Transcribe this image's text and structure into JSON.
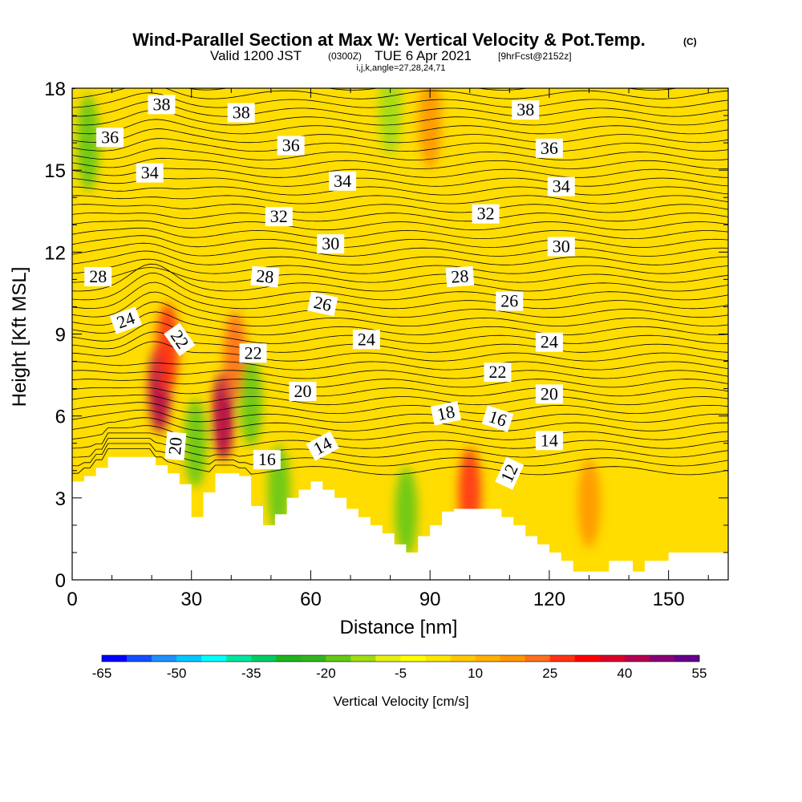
{
  "chart_data": {
    "type": "heatmap",
    "title": "Wind-Parallel Section at Max W: Vertical Velocity & Pot.Temp.",
    "title_mark": "(C)",
    "subtitle_parts": [
      "Valid 1200 JST",
      "(0300Z)",
      "TUE 6 Apr 2021",
      "[9hrFcst@2152z]"
    ],
    "subtitle2": "i,j,k,angle=27,28,24,71",
    "xlabel": "Distance [nm]",
    "ylabel": "Height [Kft MSL]",
    "xlim": [
      0,
      165
    ],
    "ylim": [
      0,
      18
    ],
    "x_ticks": [
      "0",
      "30",
      "60",
      "90",
      "120",
      "150"
    ],
    "y_ticks": [
      "0",
      "3",
      "6",
      "9",
      "12",
      "15",
      "18"
    ],
    "colorbar": {
      "label": "Vertical Velocity [cm/s]",
      "tick_labels": [
        "-65",
        "-50",
        "-35",
        "-20",
        "-5",
        "10",
        "25",
        "40",
        "55"
      ],
      "colors": [
        "#0000ff",
        "#1450ff",
        "#1e90ff",
        "#00c8ff",
        "#00ffff",
        "#00e6a0",
        "#00cc66",
        "#1eb41e",
        "#32b41e",
        "#64c814",
        "#a0dc14",
        "#e6f014",
        "#ffff00",
        "#ffe600",
        "#ffc800",
        "#ffb000",
        "#ff9600",
        "#ff6e1e",
        "#ff3214",
        "#ff0000",
        "#dc0028",
        "#b40050",
        "#8c0078",
        "#64008c"
      ]
    },
    "theta_contour_labels": [
      {
        "text": "38",
        "x": 22.5,
        "y": 17.4,
        "angle": 0
      },
      {
        "text": "38",
        "x": 42.5,
        "y": 17.1,
        "angle": 0
      },
      {
        "text": "38",
        "x": 114,
        "y": 17.2,
        "angle": 0
      },
      {
        "text": "36",
        "x": 9.5,
        "y": 16.2,
        "angle": 0
      },
      {
        "text": "36",
        "x": 55,
        "y": 15.9,
        "angle": 0
      },
      {
        "text": "36",
        "x": 120,
        "y": 15.8,
        "angle": 0
      },
      {
        "text": "34",
        "x": 19.5,
        "y": 14.9,
        "angle": 0
      },
      {
        "text": "34",
        "x": 68,
        "y": 14.6,
        "angle": 0
      },
      {
        "text": "34",
        "x": 123,
        "y": 14.4,
        "angle": 0
      },
      {
        "text": "32",
        "x": 52,
        "y": 13.3,
        "angle": 0
      },
      {
        "text": "32",
        "x": 104,
        "y": 13.4,
        "angle": 0
      },
      {
        "text": "30",
        "x": 65,
        "y": 12.3,
        "angle": 0
      },
      {
        "text": "30",
        "x": 123,
        "y": 12.2,
        "angle": 0
      },
      {
        "text": "28",
        "x": 6.5,
        "y": 11.1,
        "angle": 0
      },
      {
        "text": "28",
        "x": 48.5,
        "y": 11.1,
        "angle": 5
      },
      {
        "text": "28",
        "x": 97.5,
        "y": 11.1,
        "angle": -4
      },
      {
        "text": "26",
        "x": 63,
        "y": 10.1,
        "angle": 12
      },
      {
        "text": "26",
        "x": 110,
        "y": 10.2,
        "angle": 0
      },
      {
        "text": "24",
        "x": 13.5,
        "y": 9.5,
        "angle": -20
      },
      {
        "text": "24",
        "x": 74,
        "y": 8.8,
        "angle": 0
      },
      {
        "text": "24",
        "x": 120,
        "y": 8.7,
        "angle": 0
      },
      {
        "text": "22",
        "x": 27,
        "y": 8.8,
        "angle": 55
      },
      {
        "text": "22",
        "x": 45.5,
        "y": 8.3,
        "angle": 0
      },
      {
        "text": "22",
        "x": 107,
        "y": 7.6,
        "angle": 0
      },
      {
        "text": "20",
        "x": 58,
        "y": 6.9,
        "angle": 0
      },
      {
        "text": "20",
        "x": 120,
        "y": 6.8,
        "angle": 0
      },
      {
        "text": "20",
        "x": 26,
        "y": 4.9,
        "angle": -85
      },
      {
        "text": "18",
        "x": 94,
        "y": 6.1,
        "angle": -12
      },
      {
        "text": "16",
        "x": 107,
        "y": 5.9,
        "angle": 18
      },
      {
        "text": "16",
        "x": 49,
        "y": 4.4,
        "angle": 0
      },
      {
        "text": "14",
        "x": 63,
        "y": 4.9,
        "angle": -28
      },
      {
        "text": "14",
        "x": 120,
        "y": 5.1,
        "angle": 0
      },
      {
        "text": "12",
        "x": 110,
        "y": 3.9,
        "angle": -65
      }
    ],
    "terrain_profile": {
      "x": [
        0,
        3,
        3,
        6,
        6,
        9,
        9,
        15,
        15,
        21,
        21,
        24,
        24,
        27,
        27,
        30,
        30,
        33,
        33,
        36,
        36,
        42,
        42,
        45,
        45,
        48,
        48,
        51,
        51,
        54,
        54,
        57,
        57,
        60,
        60,
        63,
        63,
        66,
        66,
        69,
        69,
        72,
        72,
        75,
        75,
        78,
        78,
        81,
        81,
        84,
        84,
        87,
        87,
        90,
        90,
        93,
        93,
        96,
        96,
        99,
        99,
        102,
        102,
        105,
        105,
        108,
        108,
        111,
        111,
        114,
        114,
        117,
        117,
        120,
        120,
        123,
        123,
        126,
        126,
        135,
        135,
        138,
        138,
        141,
        141,
        144,
        144,
        150,
        150,
        156,
        156,
        159,
        159,
        165
      ],
      "y": [
        3.6,
        3.6,
        3.8,
        3.8,
        4.1,
        4.1,
        4.5,
        4.5,
        4.5,
        4.5,
        4.2,
        4.2,
        3.9,
        3.9,
        3.5,
        3.5,
        2.3,
        2.3,
        3.2,
        3.2,
        3.9,
        3.9,
        3.8,
        3.8,
        2.7,
        2.7,
        2.0,
        2.0,
        2.4,
        2.4,
        3.0,
        3.0,
        3.3,
        3.3,
        3.6,
        3.6,
        3.3,
        3.3,
        3.0,
        3.0,
        2.6,
        2.6,
        2.3,
        2.3,
        2.0,
        2.0,
        1.7,
        1.7,
        1.3,
        1.3,
        1.0,
        1.0,
        1.6,
        1.6,
        2.0,
        2.0,
        2.5,
        2.5,
        2.6,
        2.6,
        2.6,
        2.6,
        2.6,
        2.6,
        2.6,
        2.6,
        2.3,
        2.3,
        2.0,
        2.0,
        1.6,
        1.6,
        1.3,
        1.3,
        1.0,
        1.0,
        0.7,
        0.7,
        0.3,
        0.3,
        0.7,
        0.7,
        0.7,
        0.7,
        0.3,
        0.3,
        0.7,
        0.7,
        1.0,
        1.0,
        1.0,
        1.0,
        1.0,
        1.0
      ]
    },
    "w_field_features": [
      {
        "x": 22,
        "y": 7.0,
        "w": 40
      },
      {
        "x": 24,
        "y": 8.5,
        "w": 25
      },
      {
        "x": 38,
        "y": 6.0,
        "w": 40
      },
      {
        "x": 41,
        "y": 8.2,
        "w": 20
      },
      {
        "x": 31,
        "y": 5.0,
        "w": -20
      },
      {
        "x": 45,
        "y": 6.5,
        "w": -20
      },
      {
        "x": 52,
        "y": 3.3,
        "w": -20
      },
      {
        "x": 84,
        "y": 2.5,
        "w": -18
      },
      {
        "x": 100,
        "y": 3.2,
        "w": 25
      },
      {
        "x": 130,
        "y": 2.8,
        "w": 18
      },
      {
        "x": 4,
        "y": 16.0,
        "w": -18
      },
      {
        "x": 80,
        "y": 17.3,
        "w": -15
      },
      {
        "x": 90,
        "y": 16.8,
        "w": 15
      }
    ]
  }
}
